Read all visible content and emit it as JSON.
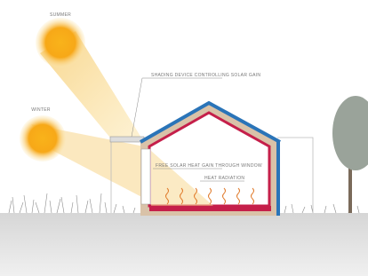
{
  "labels": {
    "summer": "SUMMER",
    "winter": "WINTER",
    "shading": "SHADING DEVICE CONTROLLING SOLAR GAIN",
    "solar_gain": "FREE SOLAR HEAT GAIN THROUGH WINDOW",
    "heat_radiation": "HEAT RADIATION"
  }
}
